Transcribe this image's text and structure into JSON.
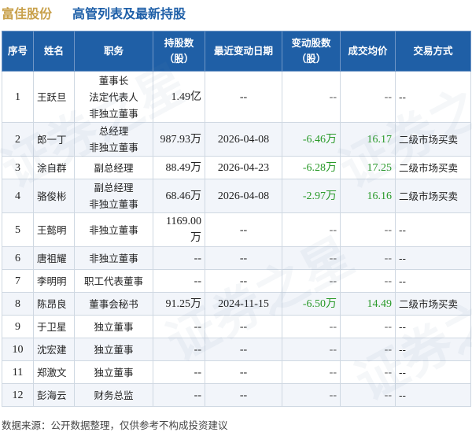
{
  "header": {
    "company": "富佳股份",
    "title": "高管列表及最新持股"
  },
  "columns": {
    "seq": "序号",
    "name": "姓名",
    "position": "职务",
    "shares_line1": "持股数",
    "shares_line2": "（股）",
    "date": "最近变动日期",
    "change_line1": "变动股数",
    "change_line2": "（股）",
    "price": "成交均价",
    "method": "交易方式"
  },
  "rows": [
    {
      "seq": "1",
      "name": "王跃旦",
      "positions": [
        "董事长",
        "法定代表人",
        "非独立董事"
      ],
      "shares": "1.49亿",
      "date": "--",
      "change": "--",
      "price": "--",
      "method": "--"
    },
    {
      "seq": "2",
      "name": "郎一丁",
      "positions": [
        "总经理",
        "非独立董事"
      ],
      "shares": "987.93万",
      "date": "2026-04-08",
      "change": "-6.46万",
      "price": "16.17",
      "method": "二级市场买卖"
    },
    {
      "seq": "3",
      "name": "涂自群",
      "positions": [
        "副总经理"
      ],
      "shares": "88.49万",
      "date": "2026-04-23",
      "change": "-6.28万",
      "price": "17.25",
      "method": "二级市场买卖"
    },
    {
      "seq": "4",
      "name": "骆俊彬",
      "positions": [
        "副总经理",
        "非独立董事"
      ],
      "shares": "68.46万",
      "date": "2026-04-08",
      "change": "-2.97万",
      "price": "16.16",
      "method": "二级市场买卖"
    },
    {
      "seq": "5",
      "name": "王懿明",
      "positions": [
        "非独立董事"
      ],
      "shares": "1169.00万",
      "date": "--",
      "change": "--",
      "price": "--",
      "method": "--"
    },
    {
      "seq": "6",
      "name": "唐祖耀",
      "positions": [
        "非独立董事"
      ],
      "shares": "--",
      "date": "--",
      "change": "--",
      "price": "--",
      "method": "--"
    },
    {
      "seq": "7",
      "name": "李明明",
      "positions": [
        "职工代表董事"
      ],
      "shares": "--",
      "date": "--",
      "change": "--",
      "price": "--",
      "method": "--"
    },
    {
      "seq": "8",
      "name": "陈昂良",
      "positions": [
        "董事会秘书"
      ],
      "shares": "91.25万",
      "date": "2024-11-15",
      "change": "-6.50万",
      "price": "14.49",
      "method": "二级市场买卖"
    },
    {
      "seq": "9",
      "name": "于卫星",
      "positions": [
        "独立董事"
      ],
      "shares": "--",
      "date": "--",
      "change": "--",
      "price": "--",
      "method": "--"
    },
    {
      "seq": "10",
      "name": "沈宏建",
      "positions": [
        "独立董事"
      ],
      "shares": "--",
      "date": "--",
      "change": "--",
      "price": "--",
      "method": "--"
    },
    {
      "seq": "11",
      "name": "郑激文",
      "positions": [
        "独立董事"
      ],
      "shares": "--",
      "date": "--",
      "change": "--",
      "price": "--",
      "method": "--"
    },
    {
      "seq": "12",
      "name": "彭海云",
      "positions": [
        "财务总监"
      ],
      "shares": "--",
      "date": "--",
      "change": "--",
      "price": "--",
      "method": "--"
    }
  ],
  "footer": "数据来源：公开数据整理，仅供参考不构成投资建议",
  "watermark": "证券之星",
  "colors": {
    "header_bg": "#1f5fa6",
    "company": "#c8a04a",
    "title": "#1e5fa8",
    "change_green": "#2a9a2a"
  }
}
